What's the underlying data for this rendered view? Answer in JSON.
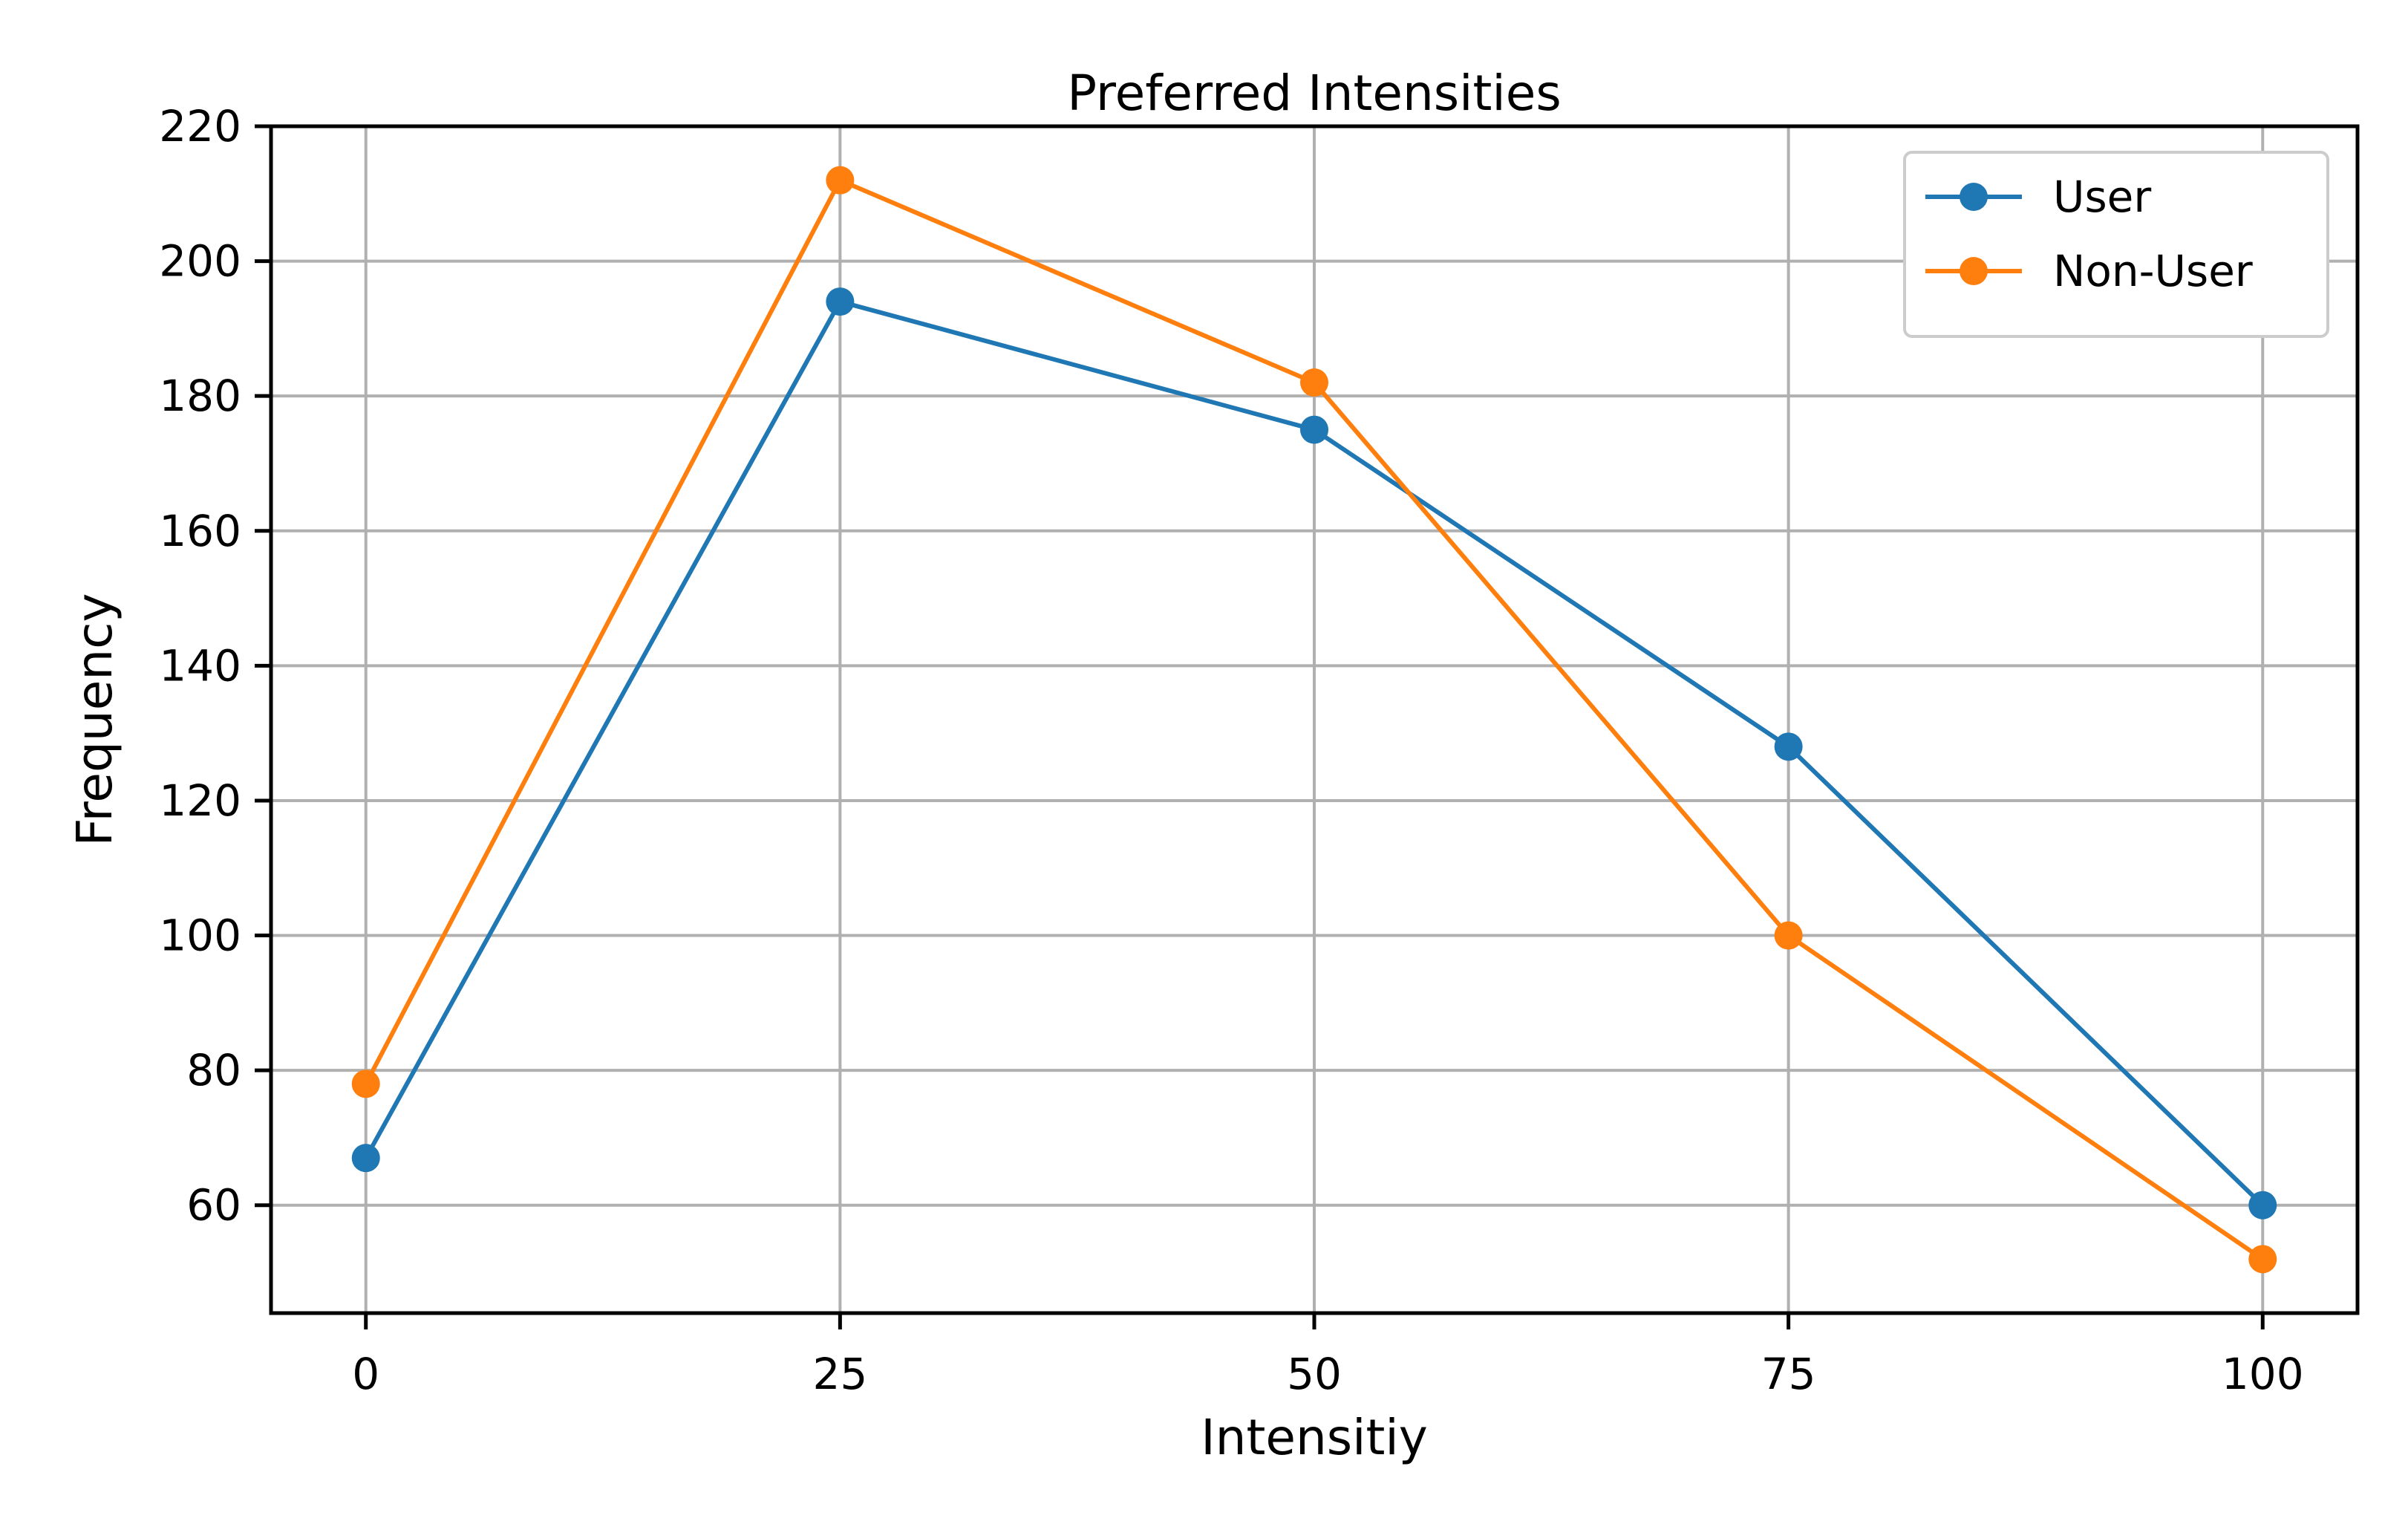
{
  "chart_data": {
    "type": "line",
    "title": "Preferred Intensities",
    "xlabel": "Intensitiy",
    "ylabel": "Frequency",
    "x": [
      0,
      25,
      50,
      75,
      100
    ],
    "xticks": [
      0,
      25,
      50,
      75,
      100
    ],
    "yticks": [
      60,
      80,
      100,
      120,
      140,
      160,
      180,
      200,
      220
    ],
    "xlim": [
      -5,
      105
    ],
    "ylim": [
      44,
      220
    ],
    "grid": true,
    "legend_position": "top-right",
    "series": [
      {
        "name": "User",
        "color": "#1f77b4",
        "marker": "circle",
        "values": [
          67,
          194,
          175,
          128,
          60
        ]
      },
      {
        "name": "Non-User",
        "color": "#ff7f0e",
        "marker": "circle",
        "values": [
          78,
          212,
          182,
          100,
          52
        ]
      }
    ]
  }
}
